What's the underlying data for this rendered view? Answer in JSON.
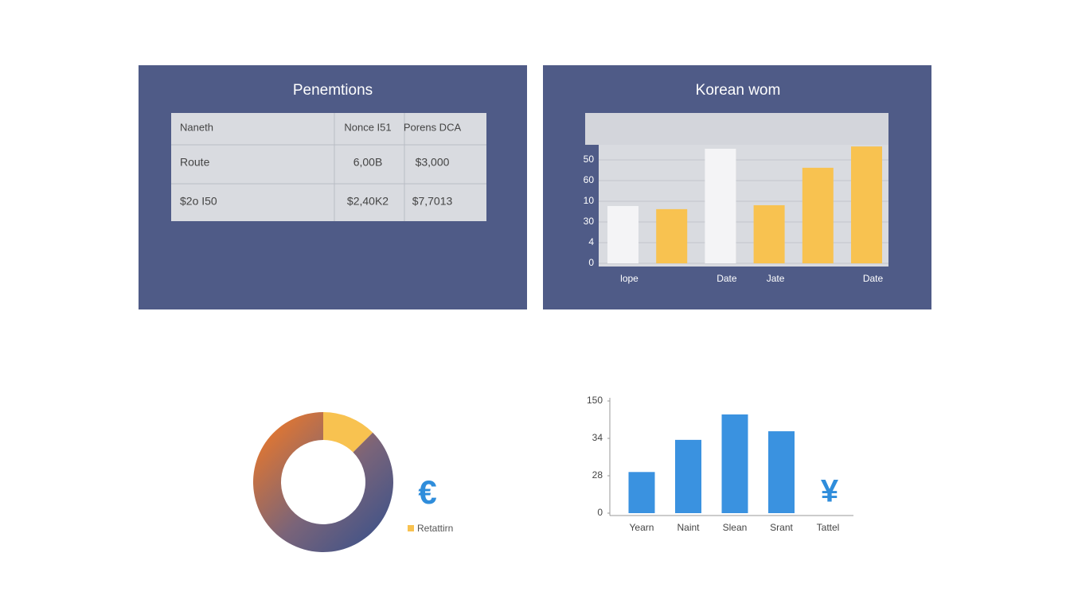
{
  "table": {
    "title": "Penemtions",
    "header": [
      "Naneth",
      "Nonce I51",
      "Porens DCA"
    ],
    "rows": [
      [
        "Route",
        "6,00B",
        "$3,000"
      ],
      [
        "$2o I50",
        "$2,40K2",
        "$7,7013"
      ]
    ]
  },
  "chart_data": [
    {
      "type": "bar",
      "title": "Korean wom",
      "categories": [
        "lope",
        null,
        "Date",
        "Jate",
        null,
        "Date"
      ],
      "values": [
        2.77,
        2.62,
        5.54,
        2.81,
        4.62,
        5.65
      ],
      "colors": [
        "#f4f4f6",
        "#f8c250",
        "#f4f4f6",
        "#f8c250",
        "#f8c250",
        "#f8c250"
      ],
      "ylim": [
        0,
        5.9
      ],
      "yticks": [
        {
          "value": 0,
          "label": "0"
        },
        {
          "value": 1,
          "label": "4"
        },
        {
          "value": 2,
          "label": "30"
        },
        {
          "value": 3,
          "label": "10"
        },
        {
          "value": 4,
          "label": "60"
        },
        {
          "value": 5,
          "label": "50"
        }
      ],
      "grid": true
    },
    {
      "type": "donut",
      "categories": [
        "Retattirn",
        null
      ],
      "values": [
        12.5,
        87.5
      ],
      "colors": [
        "#f8c250",
        "gradient"
      ],
      "symbol": "€"
    },
    {
      "type": "bar",
      "categories": [
        "Yearn",
        "Naint",
        "Slean",
        "Srant",
        "Tattel"
      ],
      "values": [
        1.1,
        1.96,
        2.64,
        2.19,
        null
      ],
      "color": "#3a92e0",
      "ylim": [
        0,
        3.1
      ],
      "yticks": [
        {
          "value": 0,
          "label": "0"
        },
        {
          "value": 1,
          "label": "28"
        },
        {
          "value": 2,
          "label": "34"
        },
        {
          "value": 3,
          "label": "150"
        }
      ],
      "symbol": "¥"
    }
  ]
}
